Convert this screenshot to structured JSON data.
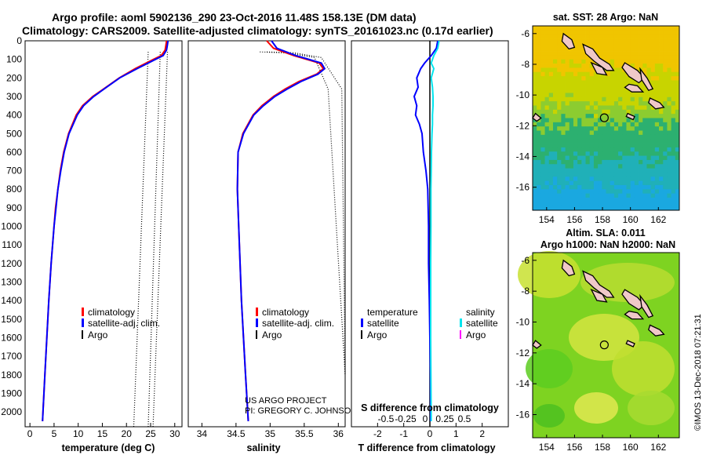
{
  "header": {
    "line1": "Argo profile: aoml 5902136_290 23-Oct-2016 11.48S 158.13E (DM data)",
    "line2": "Climatology: CARS2009. Satellite-adjusted climatology: synTS_20161023.nc (0.17d earlier)"
  },
  "depth_ticks": [
    "0",
    "100",
    "200",
    "300",
    "400",
    "500",
    "600",
    "700",
    "800",
    "900",
    "1000",
    "1100",
    "1200",
    "1300",
    "1400",
    "1500",
    "1600",
    "1700",
    "1800",
    "1900",
    "2000"
  ],
  "colors": {
    "climatology": "#ff0000",
    "satellite_adj": "#0000ff",
    "argo": "#000000",
    "sal_satellite": "#00e5ee",
    "sal_argo": "#ff00ff"
  },
  "chart_data": [
    {
      "type": "line",
      "panel": "temperature",
      "xlabel": "temperature (deg C)",
      "ylabel": "",
      "xlim": [
        -1,
        31.5
      ],
      "ylim": [
        2080,
        0
      ],
      "xticks": [
        "0",
        "5",
        "10",
        "15",
        "20",
        "25",
        "30"
      ],
      "legend": [
        "climatology",
        "satellite-adj. clim.",
        "Argo"
      ],
      "depth": [
        0,
        20,
        50,
        80,
        100,
        150,
        200,
        250,
        300,
        350,
        400,
        500,
        600,
        700,
        800,
        900,
        1000,
        1200,
        1400,
        1600,
        1800,
        2000,
        2050
      ],
      "series": [
        {
          "name": "climatology",
          "values": [
            28.3,
            28.2,
            28.0,
            27.2,
            25.6,
            21.8,
            18.5,
            15.8,
            13.0,
            10.9,
            9.6,
            8.0,
            7.0,
            6.3,
            5.8,
            5.3,
            5.0,
            4.4,
            3.9,
            3.5,
            3.1,
            2.7,
            2.6
          ]
        },
        {
          "name": "satellite-adj. clim.",
          "values": [
            28.6,
            28.5,
            28.3,
            27.6,
            26.0,
            22.2,
            18.6,
            15.9,
            13.2,
            11.1,
            9.8,
            8.1,
            7.1,
            6.4,
            5.8,
            5.4,
            5.0,
            4.4,
            3.9,
            3.5,
            3.1,
            2.7,
            2.6
          ]
        }
      ],
      "envelope_x_at_top": [
        24.5,
        27.0,
        28.5
      ],
      "envelope_x_at_bottom": [
        21.5,
        24.5,
        25.5
      ]
    },
    {
      "type": "line",
      "panel": "salinity",
      "xlabel": "salinity",
      "xlim": [
        33.8,
        36.1
      ],
      "ylim": [
        2080,
        0
      ],
      "xticks": [
        "34",
        "34.5",
        "35",
        "35.5",
        "36"
      ],
      "legend": [
        "climatology",
        "satellite-adj. clim.",
        "Argo"
      ],
      "depth": [
        0,
        40,
        80,
        120,
        150,
        180,
        220,
        260,
        300,
        350,
        400,
        500,
        600,
        800,
        1000,
        1400,
        1800,
        2050
      ],
      "series": [
        {
          "name": "climatology",
          "values": [
            34.95,
            35.05,
            35.35,
            35.72,
            35.78,
            35.68,
            35.42,
            35.22,
            35.05,
            34.88,
            34.75,
            34.6,
            34.53,
            34.52,
            34.54,
            34.58,
            34.64,
            34.68
          ]
        },
        {
          "name": "satellite-adj. clim.",
          "values": [
            35.02,
            35.1,
            35.38,
            35.75,
            35.8,
            35.7,
            35.45,
            35.25,
            35.07,
            34.9,
            34.76,
            34.61,
            34.53,
            34.52,
            34.54,
            34.58,
            34.64,
            34.68
          ]
        }
      ],
      "annotation": [
        "US ARGO PROJECT",
        "PI: GREGORY C. JOHNSON"
      ]
    },
    {
      "type": "line",
      "panel": "differences",
      "xlabel": "T difference from climatology",
      "xlabel_top": "S difference from climatology",
      "xlim": [
        -3,
        3
      ],
      "ylim": [
        2080,
        0
      ],
      "xticks": [
        "-2",
        "-1",
        "0",
        "1",
        "2"
      ],
      "xticks_top": [
        "-0.5",
        "-0.25",
        "0",
        "0.25",
        "0.5"
      ],
      "legend_left_title": "temperature",
      "legend_right_title": "salinity",
      "legend_left": [
        "satellite",
        "Argo"
      ],
      "legend_right": [
        "satellite",
        "Argo"
      ],
      "depth": [
        0,
        40,
        80,
        120,
        150,
        200,
        250,
        300,
        350,
        400,
        450,
        500,
        600,
        700,
        800,
        1000,
        1200,
        1400,
        1600,
        1800,
        2050
      ],
      "series": [
        {
          "name": "temperature satellite",
          "values": [
            0.3,
            0.25,
            0.05,
            -0.2,
            -0.35,
            -0.5,
            -0.45,
            -0.6,
            -0.5,
            -0.55,
            -0.4,
            -0.3,
            -0.25,
            -0.15,
            -0.08,
            -0.05,
            -0.05,
            -0.02,
            0,
            0.02,
            0.03
          ]
        },
        {
          "name": "salinity satellite",
          "values": [
            0.35,
            0.3,
            0.15,
            0.05,
            0.15,
            0.05,
            0.1,
            0.12,
            0.12,
            0.1,
            0.1,
            0.08,
            0.06,
            0.05,
            0.04,
            0.04,
            0.03,
            0.03,
            0.03,
            0.04,
            0.05
          ]
        }
      ]
    },
    {
      "type": "heatmap",
      "panel": "sst_map",
      "title": "sat. SST: 28 Argo: NaN",
      "xlim": [
        153,
        163.5
      ],
      "ylim": [
        -17.5,
        -5.5
      ],
      "xticks": [
        "154",
        "156",
        "158",
        "160",
        "162"
      ],
      "yticks": [
        "-6",
        "-8",
        "-10",
        "-12",
        "-14",
        "-16"
      ],
      "argo_position": [
        158.13,
        -11.48
      ]
    },
    {
      "type": "heatmap",
      "panel": "sla_map",
      "title_line1": "Altim. SLA: 0.011",
      "title_line2": "Argo h1000: NaN h2000: NaN",
      "xlim": [
        153,
        163.5
      ],
      "ylim": [
        -17.5,
        -5.5
      ],
      "xticks": [
        "154",
        "156",
        "158",
        "160",
        "162"
      ],
      "yticks": [
        "-6",
        "-8",
        "-10",
        "-12",
        "-14",
        "-16"
      ],
      "argo_position": [
        158.13,
        -11.48
      ]
    }
  ],
  "credit": "©IMOS 13-Dec-2018 07:21:31"
}
